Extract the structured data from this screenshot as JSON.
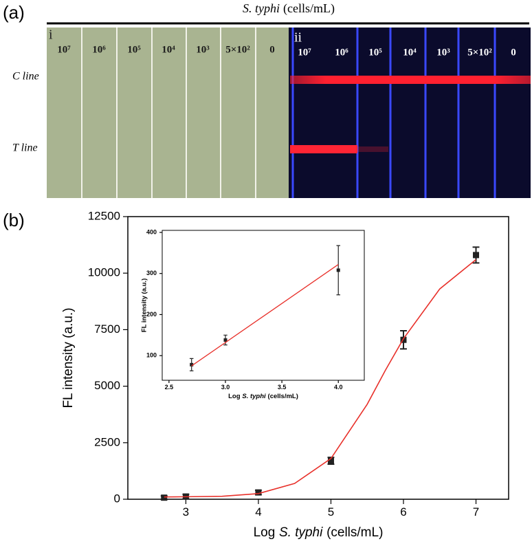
{
  "panel_a": {
    "label": "(a)",
    "title": [
      "S. typhi",
      "(cells/mL)"
    ],
    "row_labels": [
      "C line",
      "T line"
    ],
    "subpanels": [
      {
        "label": "i",
        "concentrations": [
          "10⁷",
          "10⁶",
          "10⁵",
          "10⁴",
          "10³",
          "5×10²",
          "0"
        ]
      },
      {
        "label": "ii",
        "concentrations": [
          "10⁷",
          "10⁶",
          "10⁵",
          "10⁴",
          "10³",
          "5×10²",
          "0"
        ]
      }
    ]
  },
  "panel_b": {
    "label": "(b)"
  },
  "chart_data": [
    {
      "type": "scatter",
      "x_label": [
        "Log",
        "S. typhi",
        "(cells/mL)"
      ],
      "y_label": "FL intensity (a.u.)",
      "xlim": [
        2.2,
        7.45
      ],
      "ylim": [
        0,
        12500
      ],
      "xticks": [
        3,
        4,
        5,
        6,
        7
      ],
      "yticks": [
        0,
        2500,
        5000,
        7500,
        10000,
        12500
      ],
      "series": [
        {
          "style": "markers",
          "color": "#222222",
          "x": [
            2.7,
            3,
            4,
            5,
            6,
            7
          ],
          "values": [
            70,
            120,
            300,
            1700,
            7050,
            10800
          ],
          "errors": [
            80,
            100,
            100,
            150,
            400,
            350
          ]
        },
        {
          "style": "line",
          "color": "#e8302a",
          "x": [
            2.7,
            3,
            3.5,
            4,
            4.5,
            5,
            5.5,
            5.75,
            6,
            6.5,
            7
          ],
          "values": [
            100,
            110,
            130,
            250,
            700,
            1800,
            4200,
            5700,
            7100,
            9300,
            10600
          ]
        }
      ]
    },
    {
      "type": "scatter",
      "x_label": [
        "Log",
        "S. typhi",
        "(cells/mL)"
      ],
      "y_label": "FL intensity (a.u.)",
      "xlim": [
        2.44,
        4.23
      ],
      "ylim": [
        40,
        405
      ],
      "xticks": [
        {
          "value": 2.5,
          "label": "2.5"
        },
        {
          "value": 3,
          "label": "3.0"
        },
        {
          "value": 3.5,
          "label": "3.5"
        },
        {
          "value": 4,
          "label": "4.0"
        }
      ],
      "yticks": [
        100,
        200,
        300,
        400
      ],
      "series": [
        {
          "style": "markers",
          "color": "#222222",
          "x": [
            2.7,
            3,
            4
          ],
          "values": [
            78,
            138,
            308
          ],
          "errors": [
            15,
            12,
            60
          ]
        },
        {
          "style": "line",
          "color": "#e8302a",
          "x": [
            2.7,
            4
          ],
          "values": [
            75,
            322
          ]
        }
      ]
    }
  ]
}
